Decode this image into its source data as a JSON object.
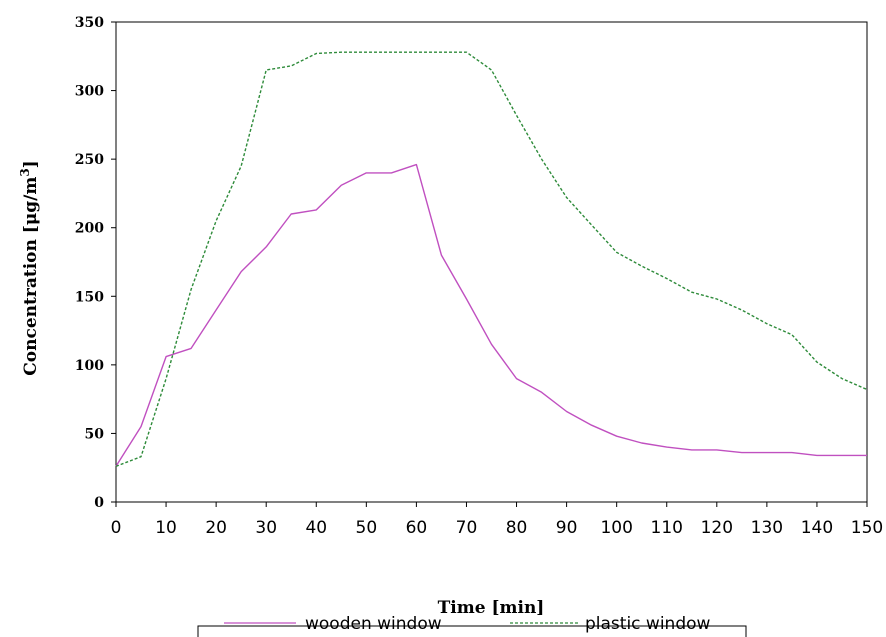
{
  "chart_data": {
    "type": "line",
    "title": "",
    "xlabel": "Time [min]",
    "ylabel_prefix": "Concentration [μg/m",
    "ylabel_sup": "3",
    "ylabel_suffix": "]",
    "xlim": [
      0,
      150
    ],
    "ylim": [
      0,
      350
    ],
    "x_ticks": [
      0,
      10,
      20,
      30,
      40,
      50,
      60,
      70,
      80,
      90,
      100,
      110,
      120,
      130,
      140,
      150
    ],
    "y_ticks": [
      0,
      50,
      100,
      150,
      200,
      250,
      300,
      350
    ],
    "grid": false,
    "legend_position": "bottom",
    "series": [
      {
        "name": "wooden window",
        "color": "#c050c0",
        "dash": "solid",
        "x": [
          0,
          5,
          10,
          15,
          20,
          25,
          30,
          35,
          40,
          45,
          50,
          55,
          60,
          65,
          70,
          75,
          80,
          85,
          90,
          95,
          100,
          105,
          110,
          115,
          120,
          125,
          130,
          135,
          140,
          145,
          150
        ],
        "y": [
          26,
          55,
          106,
          112,
          140,
          168,
          186,
          210,
          213,
          231,
          240,
          240,
          246,
          180,
          148,
          115,
          90,
          80,
          66,
          56,
          48,
          43,
          40,
          38,
          38,
          36,
          36,
          36,
          34,
          34,
          34
        ]
      },
      {
        "name": "plastic window",
        "color": "#2e8b3a",
        "dash": "dashed",
        "x": [
          0,
          5,
          10,
          15,
          20,
          25,
          30,
          35,
          40,
          45,
          50,
          55,
          60,
          65,
          70,
          75,
          80,
          85,
          90,
          95,
          100,
          105,
          110,
          115,
          120,
          125,
          130,
          135,
          140,
          145,
          150
        ],
        "y": [
          26,
          33,
          90,
          155,
          205,
          245,
          315,
          318,
          327,
          328,
          328,
          328,
          328,
          328,
          328,
          315,
          282,
          250,
          222,
          202,
          182,
          172,
          163,
          153,
          148,
          140,
          130,
          122,
          102,
          90,
          82
        ]
      }
    ]
  }
}
